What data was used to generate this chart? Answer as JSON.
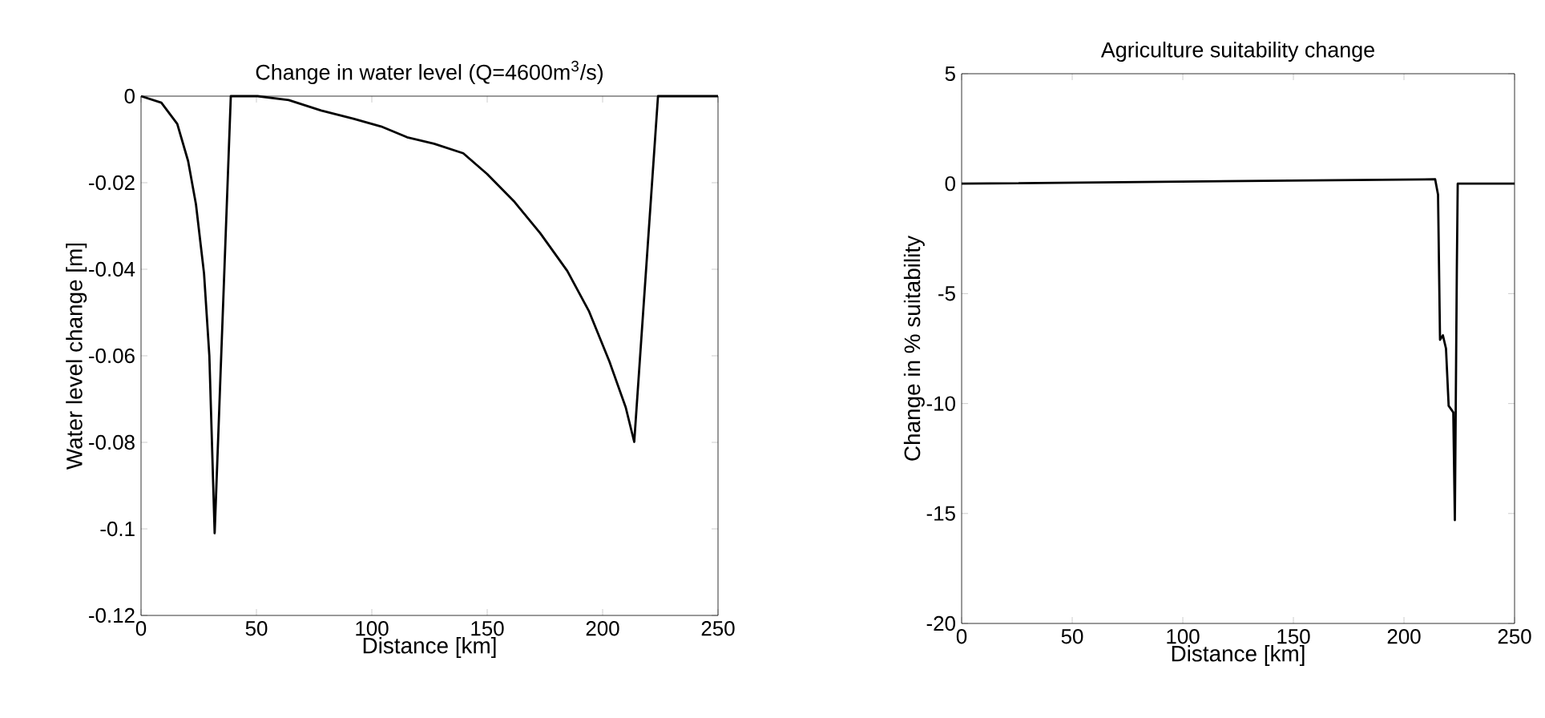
{
  "chart_data": [
    {
      "type": "line",
      "title": "Change in water level (Q=4600m$^{3}$/s)",
      "xlabel": "Distance [km]",
      "ylabel": "Water level change [m]",
      "x": [
        0,
        8.8,
        15.7,
        20.4,
        23.8,
        27.3,
        29.6,
        31.9,
        38.9,
        50.5,
        64,
        78,
        92,
        104,
        115.3,
        127,
        139.6,
        150,
        161.6,
        173,
        184.7,
        194,
        203,
        210,
        213.7,
        224,
        250
      ],
      "series": [
        {
          "color": "#000000",
          "values": [
            0,
            -0.0015,
            -0.0064,
            -0.015,
            -0.025,
            -0.041,
            -0.06,
            -0.101,
            0,
            0,
            -0.0009,
            -0.0033,
            -0.0052,
            -0.007,
            -0.0095,
            -0.011,
            -0.0132,
            -0.018,
            -0.0243,
            -0.0317,
            -0.0404,
            -0.0496,
            -0.0614,
            -0.0719,
            -0.0799,
            0,
            0
          ]
        }
      ],
      "xlim": [
        0,
        250
      ],
      "xticks": [
        0,
        50,
        100,
        150,
        200,
        250
      ],
      "ylim": [
        -0.12,
        0
      ],
      "yticks": [
        -0.12,
        -0.1,
        -0.08,
        -0.06,
        -0.04,
        -0.02,
        0
      ]
    },
    {
      "type": "line",
      "title": "Agriculture suitability change",
      "xlabel": "Distance [km]",
      "ylabel": "Change in % suitability",
      "x": [
        0,
        214.1,
        215.4,
        216.3,
        217.6,
        219,
        220.2,
        222.3,
        223,
        223.9,
        224.3,
        250
      ],
      "series": [
        {
          "color": "#000000",
          "values": [
            0,
            0.2,
            -0.5,
            -7.1,
            -6.9,
            -7.5,
            -10.1,
            -10.4,
            -15.3,
            -3.9,
            0,
            0
          ]
        }
      ],
      "xlim": [
        0,
        250
      ],
      "xticks": [
        0,
        50,
        100,
        150,
        200,
        250
      ],
      "ylim": [
        -20,
        5
      ],
      "yticks": [
        -20,
        -15,
        -10,
        -5,
        0,
        5
      ]
    }
  ]
}
